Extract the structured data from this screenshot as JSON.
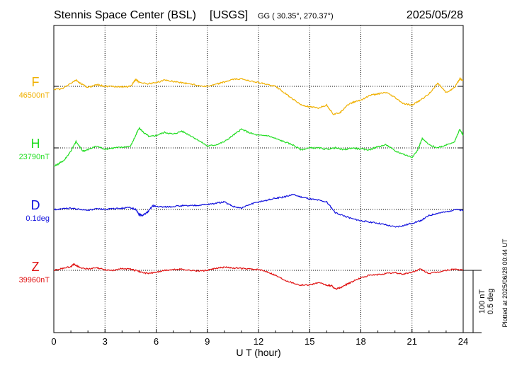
{
  "header": {
    "station": "Stennis Space Center (BSL)",
    "network": "[USGS]",
    "coords": "GG ( 30.35°, 270.37°)",
    "date": "2025/05/28"
  },
  "footer": {
    "plotted": "Plotted at 2025/06/28 00:44 UT"
  },
  "colors": {
    "F": "#f0b000",
    "H": "#22dd22",
    "D": "#1010dd",
    "Z": "#e01010",
    "axis": "#000000"
  },
  "chart_data": {
    "type": "line",
    "xlabel": "U T (hour)",
    "xlim": [
      0,
      24
    ],
    "xticks": [
      "0",
      "3",
      "6",
      "9",
      "12",
      "15",
      "18",
      "21",
      "24"
    ],
    "grid": true,
    "scale": {
      "nt_label": "100 nT",
      "deg_label": "0.5 deg"
    },
    "series": [
      {
        "key": "F",
        "name": "F",
        "baseline_label": "46500nT",
        "x": [
          0,
          0.5,
          1,
          1.3,
          1.6,
          2,
          2.5,
          3,
          3.5,
          4,
          4.5,
          4.8,
          5,
          5.5,
          6,
          6.5,
          7,
          7.5,
          8,
          8.5,
          9,
          9.5,
          10,
          10.5,
          11,
          11.5,
          12,
          12.5,
          13,
          13.5,
          14,
          14.5,
          15,
          15.5,
          16,
          16.4,
          16.8,
          17.2,
          17.6,
          18,
          18.5,
          19,
          19.5,
          20,
          20.5,
          21,
          21.5,
          22,
          22.5,
          23,
          23.5,
          23.8,
          24
        ],
        "values": [
          -5,
          -4,
          5,
          10,
          4,
          -2,
          3,
          0,
          0,
          -1,
          0,
          11,
          7,
          4,
          6,
          10,
          8,
          6,
          4,
          1,
          0,
          3,
          7,
          11,
          12,
          9,
          6,
          3,
          0,
          -10,
          -20,
          -30,
          -33,
          -35,
          -30,
          -45,
          -42,
          -30,
          -25,
          -22,
          -15,
          -12,
          -10,
          -18,
          -28,
          -30,
          -22,
          -12,
          5,
          -10,
          -2,
          12,
          10
        ]
      },
      {
        "key": "H",
        "name": "H",
        "baseline_label": "23790nT",
        "x": [
          0,
          0.3,
          0.6,
          1,
          1.3,
          1.7,
          2,
          2.5,
          3,
          3.5,
          4,
          4.5,
          4.8,
          5,
          5.3,
          5.6,
          6,
          6.5,
          7,
          7.5,
          8,
          8.5,
          9,
          9.5,
          10,
          10.5,
          11,
          11.5,
          12,
          12.5,
          13,
          13.5,
          14,
          14.5,
          15,
          15.5,
          16,
          16.5,
          17,
          17.5,
          18,
          18.5,
          19,
          19.5,
          20,
          20.5,
          21,
          21.3,
          21.6,
          22,
          22.5,
          23,
          23.5,
          23.8,
          24
        ],
        "values": [
          -30,
          -25,
          -20,
          -5,
          10,
          -5,
          -3,
          3,
          -2,
          0,
          1,
          3,
          20,
          32,
          24,
          18,
          20,
          25,
          22,
          27,
          20,
          12,
          3,
          5,
          10,
          20,
          30,
          24,
          20,
          20,
          15,
          10,
          5,
          -3,
          0,
          0,
          -2,
          0,
          -3,
          0,
          -2,
          -3,
          2,
          5,
          -5,
          -10,
          -15,
          -5,
          15,
          5,
          0,
          5,
          10,
          30,
          20
        ]
      },
      {
        "key": "D",
        "name": "D",
        "baseline_label": "0.1deg",
        "x": [
          0,
          0.5,
          1,
          1.5,
          2,
          2.5,
          3,
          3.5,
          4,
          4.5,
          4.8,
          5,
          5.2,
          5.5,
          5.8,
          6,
          6.5,
          7,
          7.5,
          8,
          8.5,
          9,
          9.5,
          10,
          10.5,
          11,
          11.5,
          12,
          12.5,
          13,
          13.5,
          14,
          14.5,
          15,
          15.5,
          16,
          16.5,
          17,
          17.5,
          18,
          18.5,
          19,
          19.5,
          20,
          20.5,
          21,
          21.5,
          22,
          22.5,
          23,
          23.5,
          24
        ],
        "values": [
          0,
          1,
          2,
          0,
          -1,
          1,
          0,
          1,
          2,
          3,
          0,
          -8,
          -10,
          -4,
          6,
          5,
          4,
          5,
          6,
          6,
          7,
          8,
          10,
          12,
          5,
          2,
          8,
          12,
          15,
          18,
          20,
          24,
          20,
          17,
          15,
          12,
          -5,
          -10,
          -15,
          -18,
          -20,
          -22,
          -25,
          -28,
          -26,
          -22,
          -18,
          -10,
          -6,
          -4,
          0,
          -2
        ]
      },
      {
        "key": "Z",
        "name": "Z",
        "baseline_label": "39960nT",
        "x": [
          0,
          0.5,
          1,
          1.2,
          1.5,
          2,
          2.5,
          3,
          3.5,
          4,
          4.5,
          5,
          5.5,
          6,
          6.5,
          7,
          7.5,
          8,
          8.5,
          9,
          9.5,
          10,
          10.5,
          11,
          11.5,
          12,
          12.5,
          13,
          13.5,
          14,
          14.5,
          15,
          15.5,
          16,
          16.3,
          16.5,
          16.8,
          17.2,
          17.5,
          18,
          18.5,
          19,
          19.5,
          20,
          20.5,
          21,
          21.5,
          22,
          22.5,
          23,
          23.5,
          24
        ],
        "values": [
          0,
          3,
          6,
          10,
          5,
          2,
          4,
          1,
          0,
          3,
          2,
          -2,
          -5,
          -3,
          0,
          1,
          2,
          0,
          -1,
          0,
          3,
          5,
          4,
          3,
          2,
          1,
          -2,
          -8,
          -15,
          -20,
          -24,
          -23,
          -20,
          -24,
          -25,
          -30,
          -28,
          -22,
          -18,
          -12,
          -8,
          -7,
          -5,
          -4,
          -6,
          -3,
          2,
          -5,
          -3,
          0,
          2,
          0
        ]
      }
    ]
  }
}
